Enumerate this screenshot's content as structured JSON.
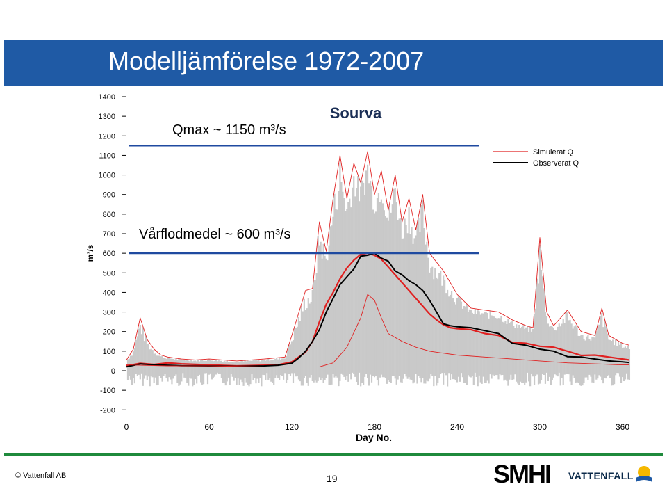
{
  "slide": {
    "title": "Modelljämförelse 1972-2007",
    "copyright": "© Vattenfall AB",
    "page_number": "19",
    "logo_left": "SMHI",
    "logo_right": "VATTENFALL"
  },
  "chart_data": {
    "type": "line",
    "title": "Sourva",
    "xlabel": "Day No.",
    "ylabel": "m³/s",
    "xlim": [
      0,
      365
    ],
    "ylim": [
      -200,
      1400
    ],
    "x_ticks": [
      0,
      60,
      120,
      180,
      240,
      300,
      360
    ],
    "y_ticks": [
      -200,
      -100,
      0,
      100,
      200,
      300,
      400,
      500,
      600,
      700,
      800,
      900,
      1000,
      1100,
      1200,
      1300,
      1400
    ],
    "legend": {
      "placement": "top-right",
      "entries": [
        "Simulerat Q",
        "Observerat Q"
      ]
    },
    "colors": {
      "simulated": "#e02020",
      "observed": "#000000",
      "band": "#c9c9c9",
      "reference_line": "#1f4aa0"
    },
    "reference_lines": [
      {
        "label": "Qmax ~ 1150 m³/s",
        "y": 1150
      },
      {
        "label": "Vårflodmedel ~ 600 m³/s",
        "y": 600
      }
    ],
    "series": [
      {
        "name": "Simulerat Q",
        "role": "mean",
        "x": [
          0,
          10,
          20,
          30,
          40,
          60,
          80,
          100,
          110,
          120,
          130,
          135,
          140,
          145,
          150,
          155,
          160,
          165,
          170,
          175,
          180,
          185,
          190,
          195,
          200,
          205,
          210,
          215,
          220,
          225,
          230,
          235,
          240,
          250,
          260,
          270,
          280,
          290,
          300,
          310,
          320,
          330,
          340,
          350,
          360,
          365
        ],
        "y": [
          25,
          38,
          32,
          40,
          35,
          30,
          25,
          28,
          30,
          45,
          95,
          150,
          250,
          340,
          400,
          470,
          525,
          565,
          595,
          600,
          590,
          570,
          530,
          490,
          450,
          410,
          370,
          330,
          290,
          260,
          235,
          220,
          215,
          210,
          190,
          180,
          145,
          140,
          125,
          120,
          100,
          78,
          80,
          70,
          60,
          55
        ]
      },
      {
        "name": "Observerat Q",
        "role": "mean",
        "x": [
          0,
          10,
          20,
          30,
          40,
          60,
          80,
          100,
          110,
          120,
          125,
          130,
          135,
          140,
          145,
          150,
          155,
          160,
          165,
          170,
          175,
          180,
          185,
          190,
          195,
          200,
          205,
          210,
          215,
          220,
          225,
          230,
          235,
          240,
          250,
          260,
          270,
          280,
          290,
          300,
          310,
          320,
          330,
          340,
          350,
          360,
          365
        ],
        "y": [
          20,
          35,
          30,
          28,
          26,
          25,
          22,
          25,
          28,
          38,
          65,
          100,
          150,
          210,
          300,
          370,
          440,
          480,
          520,
          585,
          590,
          600,
          575,
          560,
          510,
          490,
          460,
          440,
          410,
          360,
          300,
          240,
          230,
          225,
          220,
          205,
          190,
          140,
          130,
          110,
          100,
          72,
          70,
          60,
          50,
          45,
          42
        ]
      },
      {
        "name": "Simulerat Q",
        "role": "upper",
        "x": [
          0,
          5,
          10,
          15,
          20,
          25,
          30,
          40,
          50,
          60,
          80,
          100,
          115,
          120,
          130,
          135,
          140,
          145,
          150,
          155,
          160,
          165,
          170,
          175,
          180,
          185,
          190,
          195,
          200,
          205,
          210,
          215,
          220,
          230,
          240,
          250,
          260,
          270,
          280,
          290,
          295,
          300,
          305,
          310,
          320,
          330,
          340,
          345,
          350,
          360,
          365
        ],
        "y": [
          55,
          110,
          270,
          160,
          110,
          80,
          70,
          60,
          55,
          60,
          50,
          60,
          70,
          180,
          410,
          420,
          760,
          610,
          880,
          1100,
          880,
          1060,
          960,
          1120,
          900,
          1020,
          820,
          1000,
          760,
          880,
          720,
          900,
          600,
          510,
          390,
          320,
          310,
          300,
          260,
          230,
          220,
          680,
          300,
          230,
          310,
          200,
          180,
          320,
          180,
          140,
          130
        ]
      },
      {
        "name": "Simulerat Q",
        "role": "lower",
        "x": [
          0,
          30,
          60,
          100,
          120,
          140,
          150,
          160,
          170,
          175,
          180,
          185,
          190,
          200,
          210,
          220,
          240,
          260,
          280,
          300,
          320,
          340,
          360,
          365
        ],
        "y": [
          30,
          25,
          25,
          20,
          20,
          20,
          40,
          120,
          270,
          390,
          360,
          270,
          190,
          150,
          120,
          100,
          80,
          70,
          60,
          50,
          40,
          35,
          30,
          30
        ]
      }
    ]
  }
}
